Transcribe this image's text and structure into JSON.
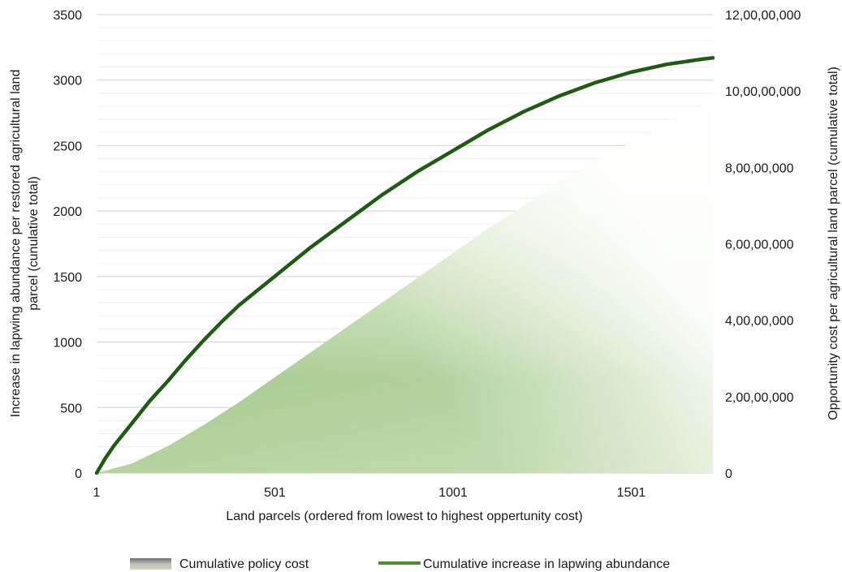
{
  "chart_data": {
    "type": "area+line",
    "xlabel": "Land parcels (ordered from lowest to highest oppertunity cost)",
    "ylabel_left_line1": "Increase in lapwing abundance per restored agricultural land",
    "ylabel_left_line2": "parcel (cunulative total)",
    "ylabel_right": "Opportunity cost per agricultural land parcel (cumulative total)",
    "x_ticks": [
      1,
      501,
      1001,
      1501
    ],
    "x_tick_labels": [
      "1",
      "501",
      "1001",
      "1501"
    ],
    "xlim": [
      1,
      1730
    ],
    "left_axis": {
      "ylim": [
        0,
        3500
      ],
      "ticks": [
        0,
        500,
        1000,
        1500,
        2000,
        2500,
        3000,
        3500
      ],
      "tick_labels": [
        "0",
        "500",
        "1000",
        "1500",
        "2000",
        "2500",
        "3000",
        "3500"
      ]
    },
    "right_axis": {
      "ylim": [
        0,
        120000000
      ],
      "ticks": [
        0,
        20000000,
        40000000,
        60000000,
        80000000,
        100000000,
        120000000
      ],
      "tick_labels": [
        "0",
        "2,00,00,000",
        "4,00,00,000",
        "6,00,00,000",
        "8,00,00,000",
        "10,00,00,000",
        "12,00,00,000"
      ]
    },
    "series": [
      {
        "name": "Cumulative policy cost",
        "axis": "right",
        "kind": "area",
        "color": "#a9c98f",
        "x": [
          1,
          100,
          200,
          300,
          400,
          500,
          600,
          700,
          800,
          900,
          1000,
          1100,
          1200,
          1300,
          1400,
          1500,
          1600,
          1700,
          1730
        ],
        "values": [
          0,
          2500000,
          7000000,
          12500000,
          18500000,
          25000000,
          31500000,
          38000000,
          44500000,
          51000000,
          57500000,
          64000000,
          70000000,
          76000000,
          81500000,
          86500000,
          91000000,
          96000000,
          98000000
        ]
      },
      {
        "name": "Cumulative increase in lapwing abundance",
        "axis": "left",
        "kind": "line",
        "color": "#1f5c12",
        "x": [
          1,
          25,
          50,
          100,
          150,
          200,
          250,
          300,
          350,
          400,
          450,
          500,
          550,
          600,
          650,
          700,
          750,
          800,
          850,
          900,
          950,
          1000,
          1050,
          1100,
          1150,
          1200,
          1250,
          1300,
          1350,
          1400,
          1450,
          1500,
          1550,
          1600,
          1650,
          1700,
          1730
        ],
        "values": [
          0,
          110,
          210,
          380,
          550,
          700,
          860,
          1010,
          1150,
          1280,
          1390,
          1500,
          1610,
          1720,
          1820,
          1920,
          2020,
          2120,
          2210,
          2300,
          2380,
          2460,
          2540,
          2620,
          2690,
          2760,
          2820,
          2880,
          2930,
          2980,
          3020,
          3060,
          3090,
          3120,
          3140,
          3160,
          3170
        ]
      }
    ],
    "legend": {
      "position": "bottom",
      "items": [
        "Cumulative policy cost",
        "Cumulative increase in lapwing abundance"
      ]
    },
    "grid": true
  }
}
